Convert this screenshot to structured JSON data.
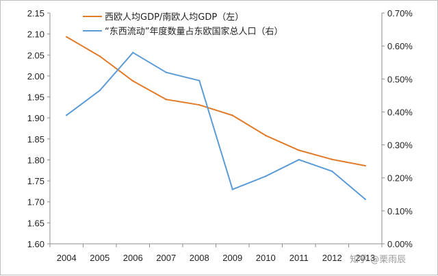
{
  "chart_data": {
    "type": "line",
    "categories": [
      "2004",
      "2005",
      "2006",
      "2007",
      "2008",
      "2009",
      "2010",
      "2011",
      "2012",
      "2013"
    ],
    "series": [
      {
        "name": "西欧人均GDP/南欧人均GDP（左）",
        "axis": "left",
        "color": "#e07b2a",
        "values": [
          2.093,
          2.047,
          1.988,
          1.944,
          1.931,
          1.906,
          1.858,
          1.823,
          1.801,
          1.786
        ]
      },
      {
        "name": "“东西流动”年度数量占东欧国家总人口（右）",
        "axis": "right",
        "color": "#5b9bd5",
        "values": [
          0.0039,
          0.00465,
          0.0058,
          0.0052,
          0.00495,
          0.00165,
          0.00205,
          0.00255,
          0.0022,
          0.00135
        ]
      }
    ],
    "left_axis": {
      "ylim": [
        1.6,
        2.15
      ],
      "ticks": [
        "1.60",
        "1.65",
        "1.70",
        "1.75",
        "1.80",
        "1.85",
        "1.90",
        "1.95",
        "2.00",
        "2.05",
        "2.10",
        "2.15"
      ]
    },
    "right_axis": {
      "ylim": [
        0,
        0.007
      ],
      "ticks": [
        "0.00%",
        "0.10%",
        "0.20%",
        "0.30%",
        "0.40%",
        "0.50%",
        "0.60%",
        "0.70%"
      ]
    },
    "grid": false,
    "legend": "top-left"
  },
  "watermark": "知乎 @栗雨辰"
}
